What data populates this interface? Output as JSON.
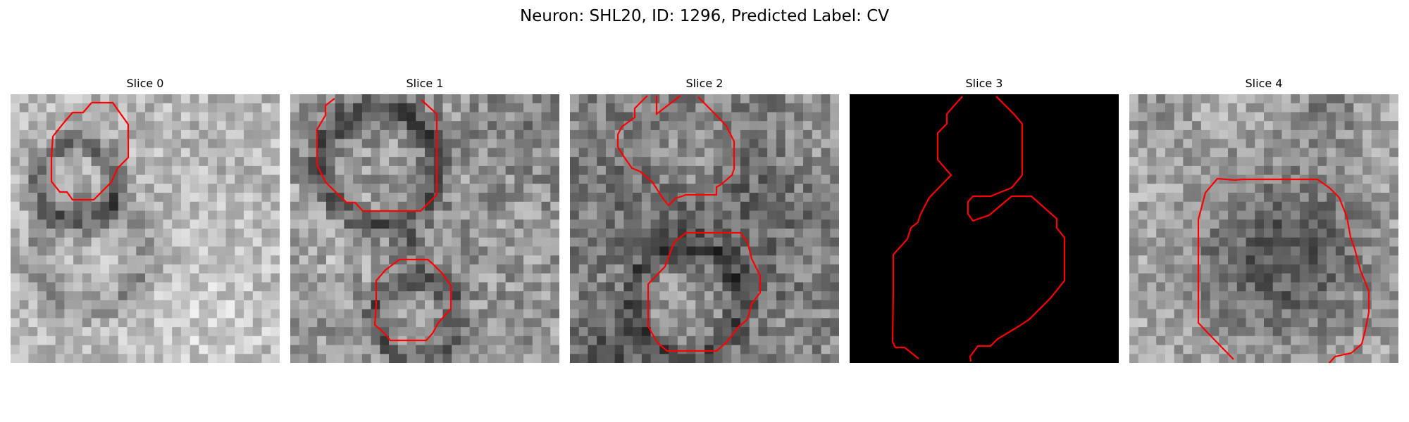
{
  "figure": {
    "title": "Neuron: SHL20, ID: 1296, Predicted Label: CV"
  },
  "colors": {
    "background": "#ffffff",
    "contour": "#ff0000",
    "mask_background": "#000000"
  },
  "panels": [
    {
      "title": "Slice 0",
      "kind": "grayscale-em-image",
      "contour_color": "#ff0000"
    },
    {
      "title": "Slice 1",
      "kind": "grayscale-em-image",
      "contour_color": "#ff0000"
    },
    {
      "title": "Slice 2",
      "kind": "grayscale-em-image",
      "contour_color": "#ff0000"
    },
    {
      "title": "Slice 3",
      "kind": "black-mask",
      "contour_color": "#ff0000"
    },
    {
      "title": "Slice 4",
      "kind": "grayscale-em-image",
      "contour_color": "#ff0000"
    }
  ]
}
